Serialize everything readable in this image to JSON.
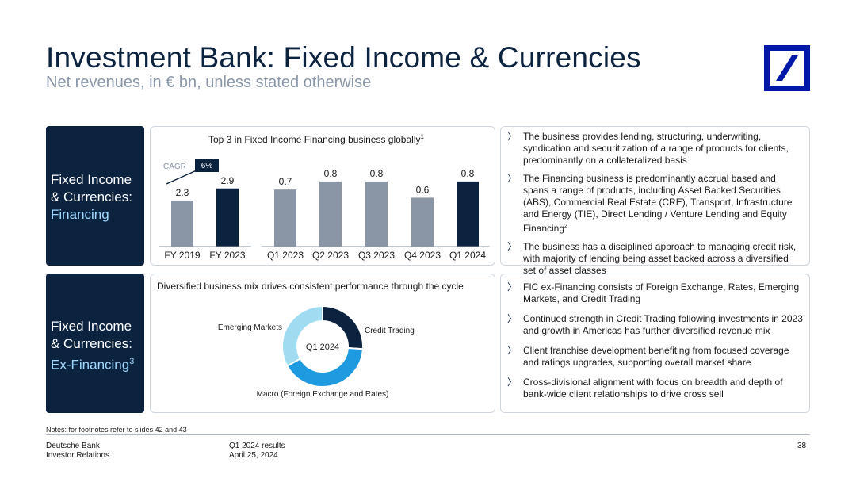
{
  "header": {
    "title": "Investment Bank: Fixed Income & Currencies",
    "subtitle": "Net revenues, in € bn, unless stated otherwise"
  },
  "colors": {
    "navy": "#0c2340",
    "grey_bar": "#8a96a6",
    "light_blue": "#9fd7ff",
    "mid_blue": "#1e9be0",
    "logo_blue": "#0018a8"
  },
  "financing": {
    "label_line1": "Fixed Income",
    "label_line2": "& Currencies:",
    "label_line3": "Financing",
    "chart_title": "Top 3 in Fixed Income Financing business globally",
    "chart_title_sup": "1",
    "cagr_label": "CAGR",
    "cagr_value": "6%",
    "bullets": [
      "The business provides lending, structuring, underwriting, syndication and securitization of a range of products for clients, predominantly on a collateralized basis",
      "The Financing business is predominantly accrual based and spans a range of products, including Asset Backed Securities (ABS), Commercial Real Estate (CRE), Transport, Infrastructure and Energy (TIE), Direct Lending / Venture Lending and Equity Financing",
      "The business has a disciplined approach to managing credit risk, with majority of lending being asset backed across a diversified set of asset classes"
    ],
    "bullet2_sup": "2"
  },
  "ex_financing": {
    "label_line1": "Fixed Income",
    "label_line2": "& Currencies:",
    "label_line3": "Ex-Financing",
    "label_sup": "3",
    "chart_title": "Diversified business mix drives consistent performance through the cycle",
    "bullets": [
      "FIC ex-Financing consists of Foreign Exchange, Rates, Emerging Markets, and Credit Trading",
      "Continued strength in Credit Trading following investments in 2023 and growth in Americas has further diversified revenue mix",
      "Client franchise development benefiting from focused coverage and ratings upgrades, supporting overall market share",
      "Cross-divisional alignment with focus on breadth and depth of bank-wide client relationships to drive cross sell"
    ]
  },
  "chart_data": [
    {
      "type": "bar",
      "title": "Top 3 in Fixed Income Financing business globally",
      "categories": [
        "FY 2019",
        "FY 2023",
        "Q1 2023",
        "Q2 2023",
        "Q3 2023",
        "Q4 2023",
        "Q1 2024"
      ],
      "values": [
        2.3,
        2.9,
        0.7,
        0.8,
        0.8,
        0.6,
        0.8
      ],
      "value_labels": [
        "2.3",
        "2.9",
        "0.7",
        "0.8",
        "0.8",
        "0.6",
        "0.8"
      ],
      "highlight": [
        false,
        true,
        false,
        false,
        false,
        false,
        true
      ],
      "groups": [
        {
          "name": "annual",
          "categories": [
            "FY 2019",
            "FY 2023"
          ],
          "ylim": [
            0,
            3.5
          ]
        },
        {
          "name": "quarterly",
          "categories": [
            "Q1 2023",
            "Q2 2023",
            "Q3 2023",
            "Q4 2023",
            "Q1 2024"
          ],
          "ylim": [
            0,
            0.95
          ]
        }
      ],
      "annotation": "CAGR 6%"
    },
    {
      "type": "pie",
      "title": "Diversified business mix drives consistent performance through the cycle",
      "center_label": "Q1 2024",
      "labels": [
        "Credit Trading",
        "Macro (Foreign Exchange and Rates)",
        "Emerging Markets"
      ],
      "values": [
        26,
        41,
        33
      ],
      "colors": [
        "#0c2340",
        "#1e9be0",
        "#9fdcf2"
      ]
    }
  ],
  "footer": {
    "notes": "Notes: for footnotes refer to slides 42 and 43",
    "company_line1": "Deutsche Bank",
    "company_line2": "Investor Relations",
    "results_line1": "Q1 2024 results",
    "results_line2": "April 25, 2024",
    "page_number": "38"
  }
}
